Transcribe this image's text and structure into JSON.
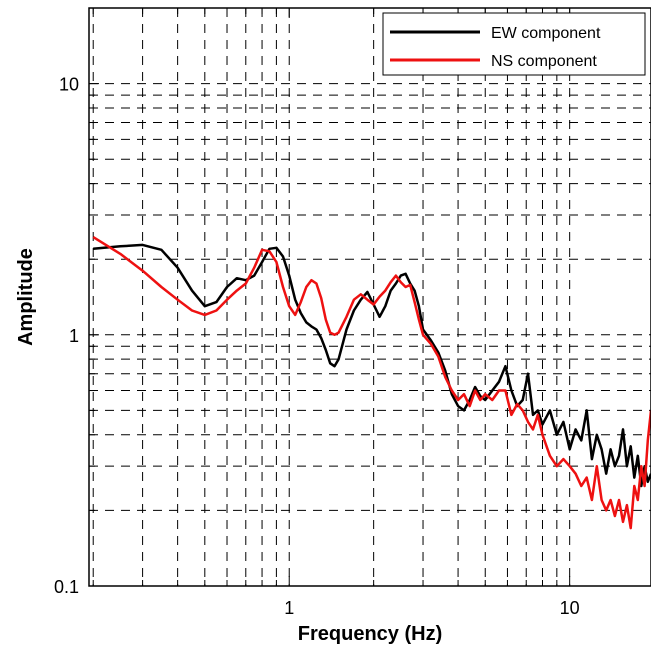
{
  "chart_data": {
    "type": "line",
    "xlabel": "Frequency (Hz)",
    "ylabel": "Amplitude",
    "xscale": "log",
    "yscale": "log",
    "xlim": [
      0.1932,
      19.5
    ],
    "ylim": [
      0.1,
      20
    ],
    "grid": true,
    "grid_style": "dashed",
    "legend_position": "top-right",
    "x_tick_labels": [
      {
        "value": 1,
        "label": "1"
      },
      {
        "value": 10,
        "label": "10"
      }
    ],
    "y_tick_labels": [
      {
        "value": 0.1,
        "label": "0.1"
      },
      {
        "value": 1,
        "label": "1"
      },
      {
        "value": 10,
        "label": "10"
      }
    ],
    "series": [
      {
        "name": "EW component",
        "color": "#000000",
        "points": [
          [
            0.2,
            2.2
          ],
          [
            0.25,
            2.25
          ],
          [
            0.3,
            2.28
          ],
          [
            0.35,
            2.18
          ],
          [
            0.4,
            1.85
          ],
          [
            0.45,
            1.5
          ],
          [
            0.5,
            1.3
          ],
          [
            0.55,
            1.35
          ],
          [
            0.6,
            1.55
          ],
          [
            0.65,
            1.68
          ],
          [
            0.7,
            1.65
          ],
          [
            0.75,
            1.72
          ],
          [
            0.8,
            1.95
          ],
          [
            0.85,
            2.2
          ],
          [
            0.9,
            2.22
          ],
          [
            0.95,
            2.05
          ],
          [
            1.0,
            1.72
          ],
          [
            1.05,
            1.38
          ],
          [
            1.1,
            1.22
          ],
          [
            1.15,
            1.12
          ],
          [
            1.2,
            1.08
          ],
          [
            1.25,
            1.05
          ],
          [
            1.3,
            0.97
          ],
          [
            1.35,
            0.87
          ],
          [
            1.4,
            0.77
          ],
          [
            1.45,
            0.75
          ],
          [
            1.5,
            0.8
          ],
          [
            1.6,
            1.05
          ],
          [
            1.7,
            1.25
          ],
          [
            1.8,
            1.38
          ],
          [
            1.9,
            1.48
          ],
          [
            2.0,
            1.32
          ],
          [
            2.1,
            1.18
          ],
          [
            2.2,
            1.3
          ],
          [
            2.3,
            1.5
          ],
          [
            2.4,
            1.6
          ],
          [
            2.5,
            1.72
          ],
          [
            2.6,
            1.75
          ],
          [
            2.7,
            1.6
          ],
          [
            2.8,
            1.5
          ],
          [
            2.9,
            1.3
          ],
          [
            3.0,
            1.05
          ],
          [
            3.2,
            0.95
          ],
          [
            3.4,
            0.85
          ],
          [
            3.6,
            0.72
          ],
          [
            3.8,
            0.58
          ],
          [
            4.0,
            0.52
          ],
          [
            4.2,
            0.5
          ],
          [
            4.4,
            0.55
          ],
          [
            4.6,
            0.62
          ],
          [
            4.8,
            0.57
          ],
          [
            5.0,
            0.55
          ],
          [
            5.3,
            0.6
          ],
          [
            5.6,
            0.65
          ],
          [
            5.9,
            0.75
          ],
          [
            6.2,
            0.6
          ],
          [
            6.5,
            0.52
          ],
          [
            6.8,
            0.55
          ],
          [
            7.1,
            0.7
          ],
          [
            7.4,
            0.48
          ],
          [
            7.7,
            0.5
          ],
          [
            8.0,
            0.44
          ],
          [
            8.5,
            0.5
          ],
          [
            9.0,
            0.4
          ],
          [
            9.5,
            0.45
          ],
          [
            10.0,
            0.35
          ],
          [
            10.5,
            0.42
          ],
          [
            11.0,
            0.38
          ],
          [
            11.5,
            0.5
          ],
          [
            12.0,
            0.32
          ],
          [
            12.5,
            0.4
          ],
          [
            13.0,
            0.35
          ],
          [
            13.5,
            0.28
          ],
          [
            14.0,
            0.35
          ],
          [
            14.5,
            0.3
          ],
          [
            15.0,
            0.33
          ],
          [
            15.5,
            0.42
          ],
          [
            16.0,
            0.3
          ],
          [
            16.5,
            0.36
          ],
          [
            17.0,
            0.27
          ],
          [
            17.5,
            0.33
          ],
          [
            18.0,
            0.25
          ],
          [
            18.5,
            0.3
          ],
          [
            19.0,
            0.26
          ],
          [
            19.5,
            0.28
          ]
        ]
      },
      {
        "name": "NS component",
        "color": "#ee1111",
        "points": [
          [
            0.2,
            2.45
          ],
          [
            0.25,
            2.1
          ],
          [
            0.3,
            1.8
          ],
          [
            0.35,
            1.55
          ],
          [
            0.4,
            1.38
          ],
          [
            0.45,
            1.25
          ],
          [
            0.5,
            1.2
          ],
          [
            0.55,
            1.25
          ],
          [
            0.6,
            1.38
          ],
          [
            0.65,
            1.5
          ],
          [
            0.7,
            1.6
          ],
          [
            0.75,
            1.85
          ],
          [
            0.8,
            2.18
          ],
          [
            0.85,
            2.15
          ],
          [
            0.9,
            1.95
          ],
          [
            0.95,
            1.55
          ],
          [
            1.0,
            1.3
          ],
          [
            1.05,
            1.2
          ],
          [
            1.1,
            1.35
          ],
          [
            1.15,
            1.55
          ],
          [
            1.2,
            1.65
          ],
          [
            1.25,
            1.6
          ],
          [
            1.3,
            1.4
          ],
          [
            1.35,
            1.15
          ],
          [
            1.4,
            1.02
          ],
          [
            1.45,
            1.0
          ],
          [
            1.5,
            1.02
          ],
          [
            1.6,
            1.18
          ],
          [
            1.7,
            1.38
          ],
          [
            1.8,
            1.45
          ],
          [
            1.9,
            1.38
          ],
          [
            2.0,
            1.32
          ],
          [
            2.1,
            1.42
          ],
          [
            2.2,
            1.5
          ],
          [
            2.3,
            1.62
          ],
          [
            2.4,
            1.72
          ],
          [
            2.5,
            1.62
          ],
          [
            2.6,
            1.55
          ],
          [
            2.7,
            1.58
          ],
          [
            2.8,
            1.35
          ],
          [
            2.9,
            1.15
          ],
          [
            3.0,
            1.0
          ],
          [
            3.2,
            0.92
          ],
          [
            3.4,
            0.82
          ],
          [
            3.6,
            0.68
          ],
          [
            3.8,
            0.6
          ],
          [
            4.0,
            0.55
          ],
          [
            4.2,
            0.58
          ],
          [
            4.4,
            0.52
          ],
          [
            4.6,
            0.6
          ],
          [
            4.8,
            0.55
          ],
          [
            5.0,
            0.58
          ],
          [
            5.3,
            0.55
          ],
          [
            5.6,
            0.6
          ],
          [
            5.9,
            0.6
          ],
          [
            6.2,
            0.48
          ],
          [
            6.5,
            0.53
          ],
          [
            6.8,
            0.5
          ],
          [
            7.1,
            0.45
          ],
          [
            7.4,
            0.42
          ],
          [
            7.7,
            0.48
          ],
          [
            8.0,
            0.4
          ],
          [
            8.5,
            0.33
          ],
          [
            9.0,
            0.3
          ],
          [
            9.5,
            0.32
          ],
          [
            10.0,
            0.3
          ],
          [
            10.5,
            0.28
          ],
          [
            11.0,
            0.25
          ],
          [
            11.5,
            0.27
          ],
          [
            12.0,
            0.22
          ],
          [
            12.5,
            0.3
          ],
          [
            13.0,
            0.22
          ],
          [
            13.5,
            0.2
          ],
          [
            14.0,
            0.22
          ],
          [
            14.5,
            0.19
          ],
          [
            15.0,
            0.22
          ],
          [
            15.5,
            0.18
          ],
          [
            16.0,
            0.21
          ],
          [
            16.5,
            0.17
          ],
          [
            17.0,
            0.25
          ],
          [
            17.5,
            0.22
          ],
          [
            18.0,
            0.3
          ],
          [
            18.5,
            0.25
          ],
          [
            19.0,
            0.38
          ],
          [
            19.5,
            0.5
          ]
        ]
      }
    ]
  }
}
